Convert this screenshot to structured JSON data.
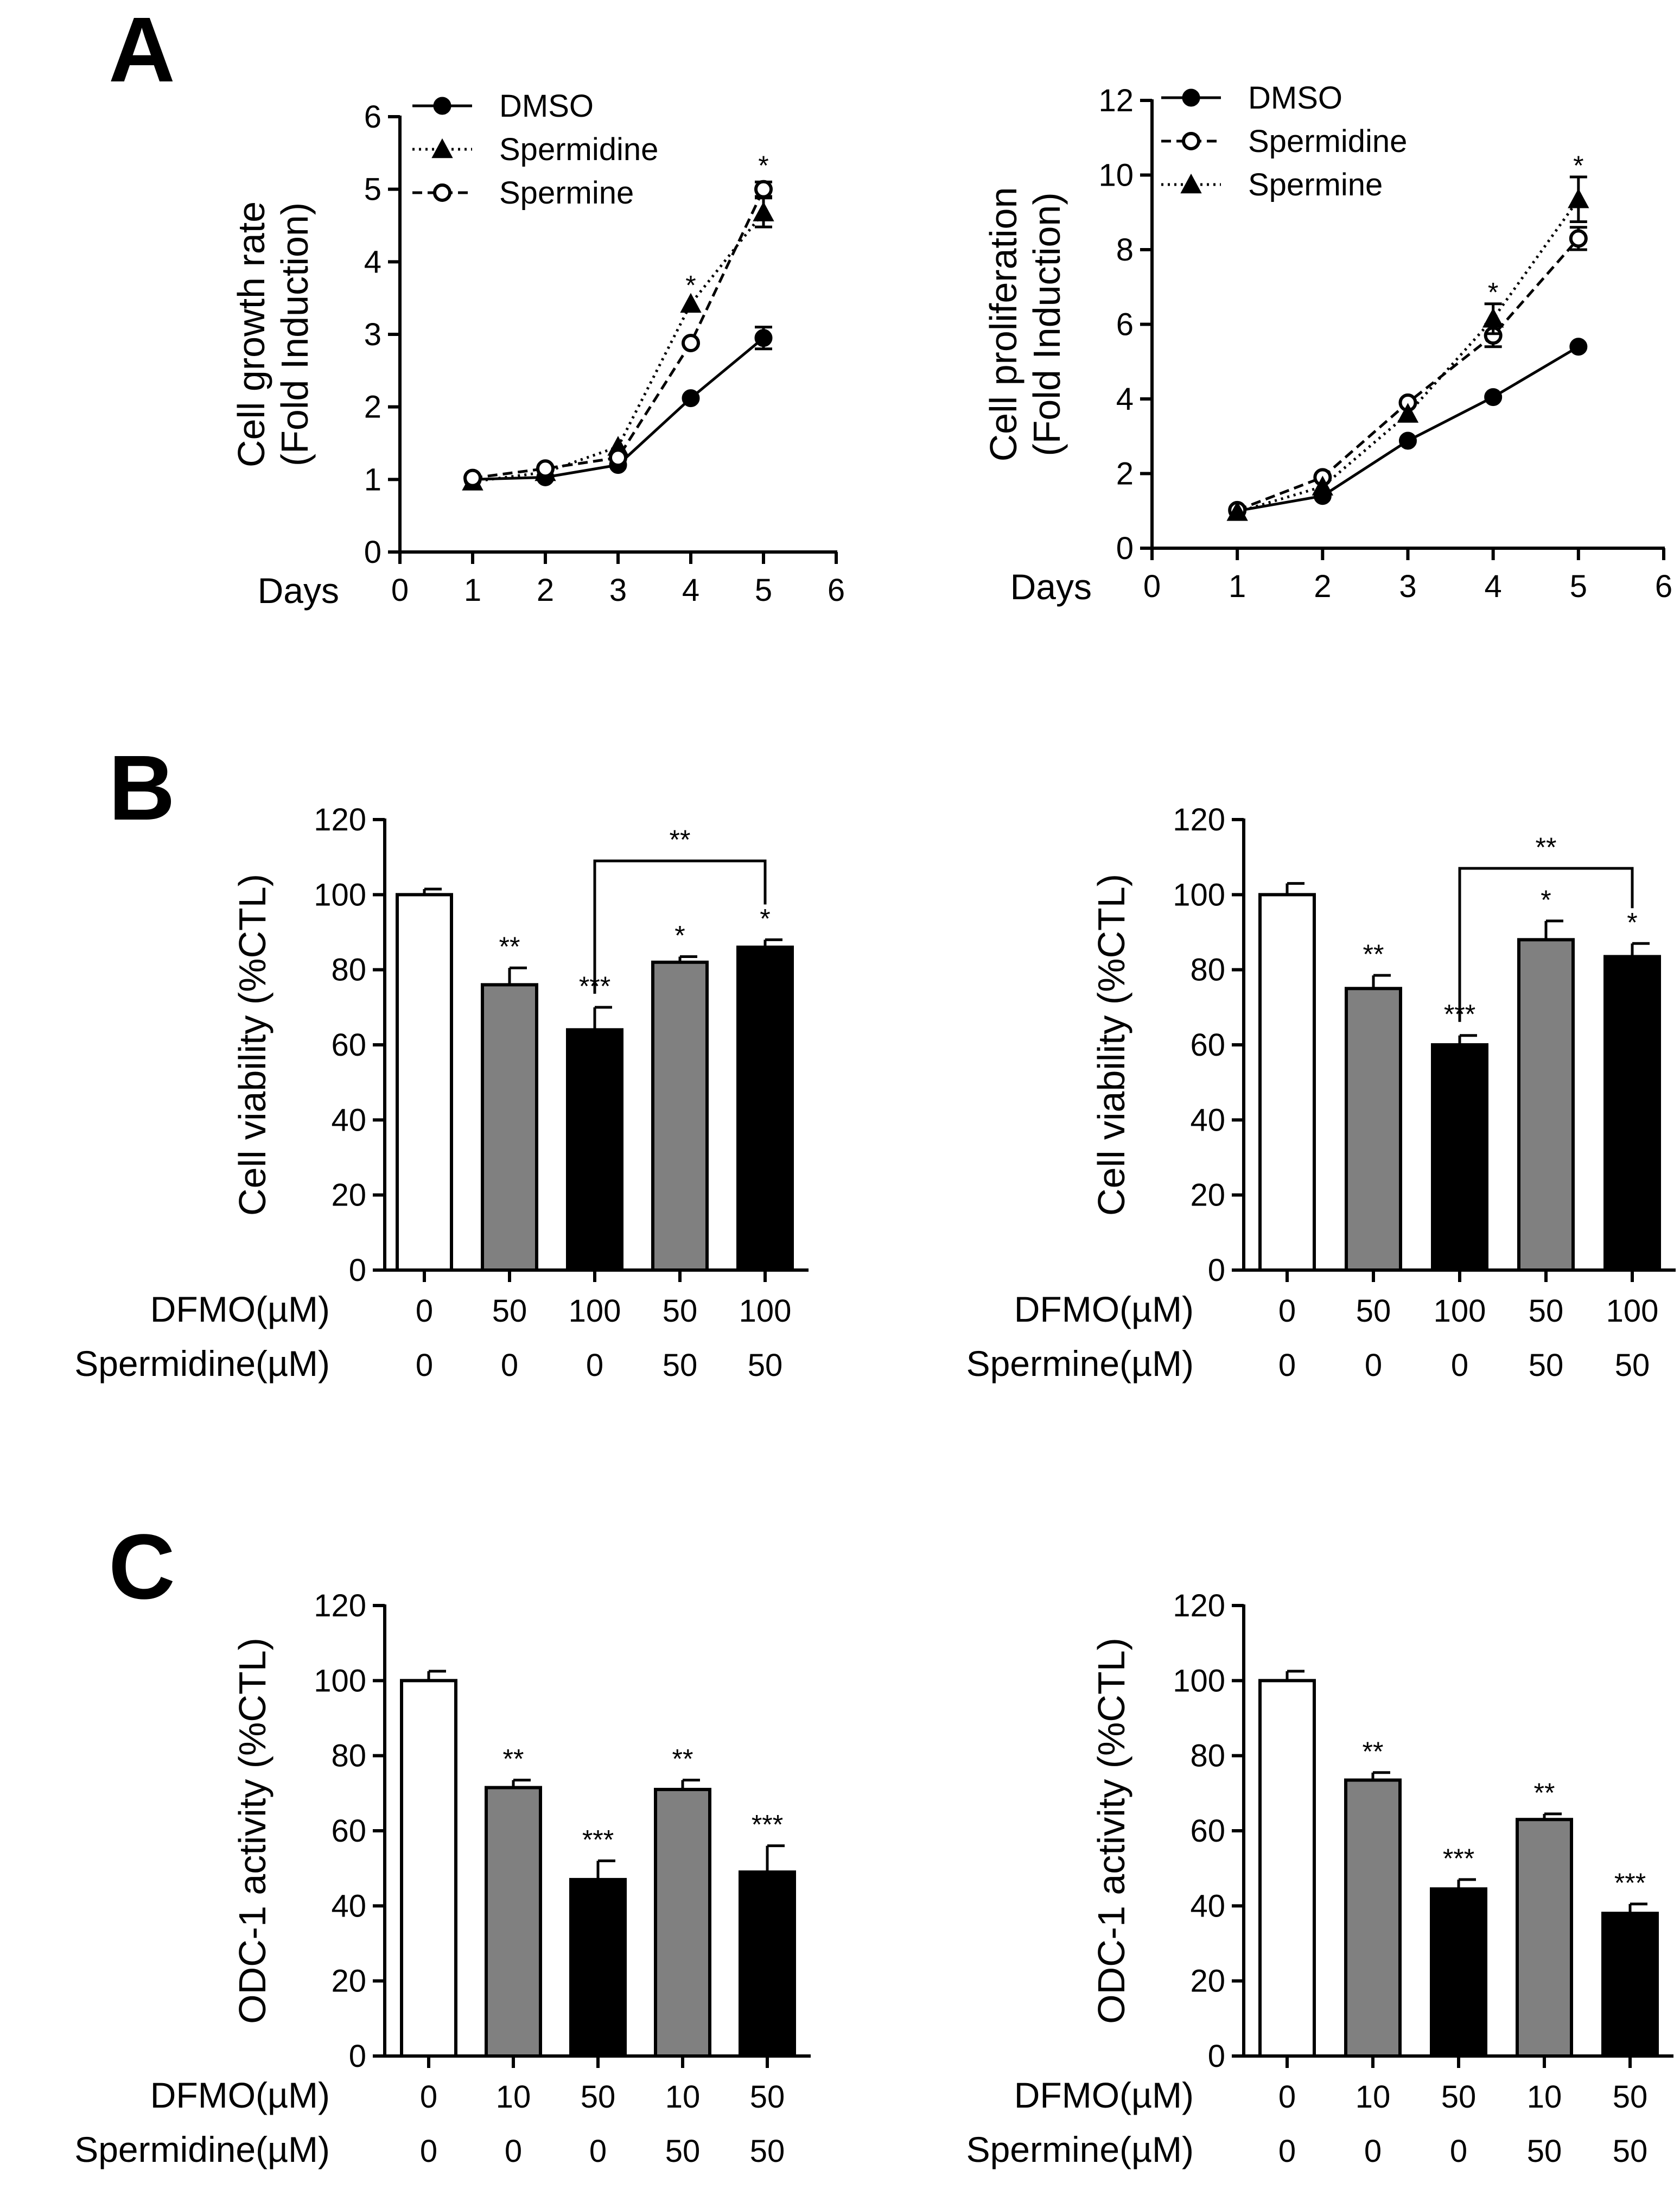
{
  "figure": {
    "panel_labels": [
      "A",
      "B",
      "C"
    ]
  },
  "chart_data": [
    {
      "id": "A1",
      "type": "line",
      "panel": "A",
      "ylabel": [
        "Cell growth rate",
        "(Fold Induction)"
      ],
      "xlabel": "Days",
      "xlim": [
        0,
        6
      ],
      "ylim": [
        0,
        6
      ],
      "xticks": [
        0,
        1,
        2,
        3,
        4,
        5,
        6
      ],
      "yticks": [
        0,
        1,
        2,
        3,
        4,
        5,
        6
      ],
      "legend": "top-left",
      "series": [
        {
          "name": "DMSO",
          "marker": "filled-circle",
          "dash": "solid",
          "x": [
            1,
            2,
            3,
            4,
            5
          ],
          "y": [
            1.0,
            1.03,
            1.2,
            2.12,
            2.95
          ],
          "err": [
            0.02,
            0.02,
            0.03,
            0.04,
            0.15
          ]
        },
        {
          "name": "Spermidine",
          "marker": "filled-triangle",
          "dash": "dotted",
          "x": [
            1,
            2,
            3,
            4,
            5
          ],
          "y": [
            0.97,
            1.1,
            1.45,
            3.42,
            4.68
          ],
          "err": [
            0.02,
            0.03,
            0.04,
            0.05,
            0.2
          ]
        },
        {
          "name": "Spermine",
          "marker": "open-circle",
          "dash": "dashed",
          "x": [
            1,
            2,
            3,
            4,
            5
          ],
          "y": [
            1.02,
            1.15,
            1.3,
            2.88,
            5.0
          ],
          "err": [
            0.02,
            0.03,
            0.04,
            0.05,
            0.1
          ]
        }
      ],
      "annotations": [
        {
          "text": "*",
          "x": 4,
          "y": 3.7
        },
        {
          "text": "*",
          "x": 5,
          "y": 5.35
        }
      ]
    },
    {
      "id": "A2",
      "type": "line",
      "panel": "A",
      "ylabel": [
        "Cell proliferation",
        "(Fold Induction)"
      ],
      "xlabel": "Days",
      "xlim": [
        0,
        6
      ],
      "ylim": [
        0,
        12
      ],
      "xticks": [
        0,
        1,
        2,
        3,
        4,
        5,
        6
      ],
      "yticks": [
        0,
        2,
        4,
        6,
        8,
        10,
        12
      ],
      "legend": "top-left",
      "series": [
        {
          "name": "DMSO",
          "marker": "filled-circle",
          "dash": "solid",
          "x": [
            1,
            2,
            3,
            4,
            5
          ],
          "y": [
            1.0,
            1.4,
            2.88,
            4.05,
            5.4
          ],
          "err": [
            0.03,
            0.05,
            0.06,
            0.06,
            0.08
          ]
        },
        {
          "name": "Spermidine",
          "marker": "open-circle",
          "dash": "dashed",
          "x": [
            1,
            2,
            3,
            4,
            5
          ],
          "y": [
            1.02,
            1.9,
            3.9,
            5.7,
            8.3
          ],
          "err": [
            0.03,
            0.06,
            0.1,
            0.3,
            0.3
          ]
        },
        {
          "name": "Spermine",
          "marker": "filled-triangle",
          "dash": "dotted",
          "x": [
            1,
            2,
            3,
            4,
            5
          ],
          "y": [
            0.97,
            1.65,
            3.6,
            6.15,
            9.35
          ],
          "err": [
            0.03,
            0.06,
            0.1,
            0.4,
            0.6
          ]
        }
      ],
      "annotations": [
        {
          "text": "*",
          "x": 4,
          "y": 6.9
        },
        {
          "text": "*",
          "x": 5,
          "y": 10.3
        }
      ]
    },
    {
      "id": "B1",
      "type": "bar",
      "panel": "B",
      "ylabel": "Cell viability (%CTL)",
      "ylim": [
        0,
        120
      ],
      "yticks": [
        0,
        20,
        40,
        60,
        80,
        100,
        120
      ],
      "values": [
        100,
        76,
        64,
        82,
        86
      ],
      "errors": [
        1.5,
        4.5,
        6,
        1.5,
        2
      ],
      "fills": [
        "#ffffff",
        "#808080",
        "#000000",
        "#808080",
        "#000000"
      ],
      "stars": [
        "",
        "**",
        "***",
        "*",
        "*"
      ],
      "bracket": {
        "from": 2,
        "to": 4,
        "y": 109,
        "text": "**"
      },
      "rows": [
        {
          "label": "DFMO(µM)",
          "values": [
            "0",
            "50",
            "100",
            "50",
            "100"
          ]
        },
        {
          "label": "Spermidine(µM)",
          "values": [
            "0",
            "0",
            "0",
            "50",
            "50"
          ]
        }
      ]
    },
    {
      "id": "B2",
      "type": "bar",
      "panel": "B",
      "ylabel": "Cell viability (%CTL)",
      "ylim": [
        0,
        120
      ],
      "yticks": [
        0,
        20,
        40,
        60,
        80,
        100,
        120
      ],
      "values": [
        100,
        75,
        60,
        88,
        83.5
      ],
      "errors": [
        3,
        3.5,
        2.5,
        5,
        3.5
      ],
      "fills": [
        "#ffffff",
        "#808080",
        "#000000",
        "#808080",
        "#000000"
      ],
      "stars": [
        "",
        "**",
        "***",
        "*",
        "*"
      ],
      "bracket": {
        "from": 2,
        "to": 4,
        "y": 107,
        "text": "**"
      },
      "rows": [
        {
          "label": "DFMO(µM)",
          "values": [
            "0",
            "50",
            "100",
            "50",
            "100"
          ]
        },
        {
          "label": "Spermine(µM)",
          "values": [
            "0",
            "0",
            "0",
            "50",
            "50"
          ]
        }
      ]
    },
    {
      "id": "C1",
      "type": "bar",
      "panel": "C",
      "ylabel": "ODC-1 activity (%CTL)",
      "ylim": [
        0,
        120
      ],
      "yticks": [
        0,
        20,
        40,
        60,
        80,
        100,
        120
      ],
      "values": [
        100,
        71.5,
        47,
        71,
        49
      ],
      "errors": [
        2.5,
        2,
        5,
        2.5,
        7
      ],
      "fills": [
        "#ffffff",
        "#808080",
        "#000000",
        "#808080",
        "#000000"
      ],
      "stars": [
        "",
        "**",
        "***",
        "**",
        "***"
      ],
      "rows": [
        {
          "label": "DFMO(µM)",
          "values": [
            "0",
            "10",
            "50",
            "10",
            "50"
          ]
        },
        {
          "label": "Spermidine(µM)",
          "values": [
            "0",
            "0",
            "0",
            "50",
            "50"
          ]
        }
      ]
    },
    {
      "id": "C2",
      "type": "bar",
      "panel": "C",
      "ylabel": "ODC-1 activity (%CTL)",
      "ylim": [
        0,
        120
      ],
      "yticks": [
        0,
        20,
        40,
        60,
        80,
        100,
        120
      ],
      "values": [
        100,
        73.5,
        44.5,
        63,
        38
      ],
      "errors": [
        2.5,
        2,
        2.5,
        1.5,
        2.5
      ],
      "fills": [
        "#ffffff",
        "#808080",
        "#000000",
        "#808080",
        "#000000"
      ],
      "stars": [
        "",
        "**",
        "***",
        "**",
        "***"
      ],
      "rows": [
        {
          "label": "DFMO(µM)",
          "values": [
            "0",
            "10",
            "50",
            "10",
            "50"
          ]
        },
        {
          "label": "Spermine(µM)",
          "values": [
            "0",
            "0",
            "0",
            "50",
            "50"
          ]
        }
      ]
    }
  ]
}
